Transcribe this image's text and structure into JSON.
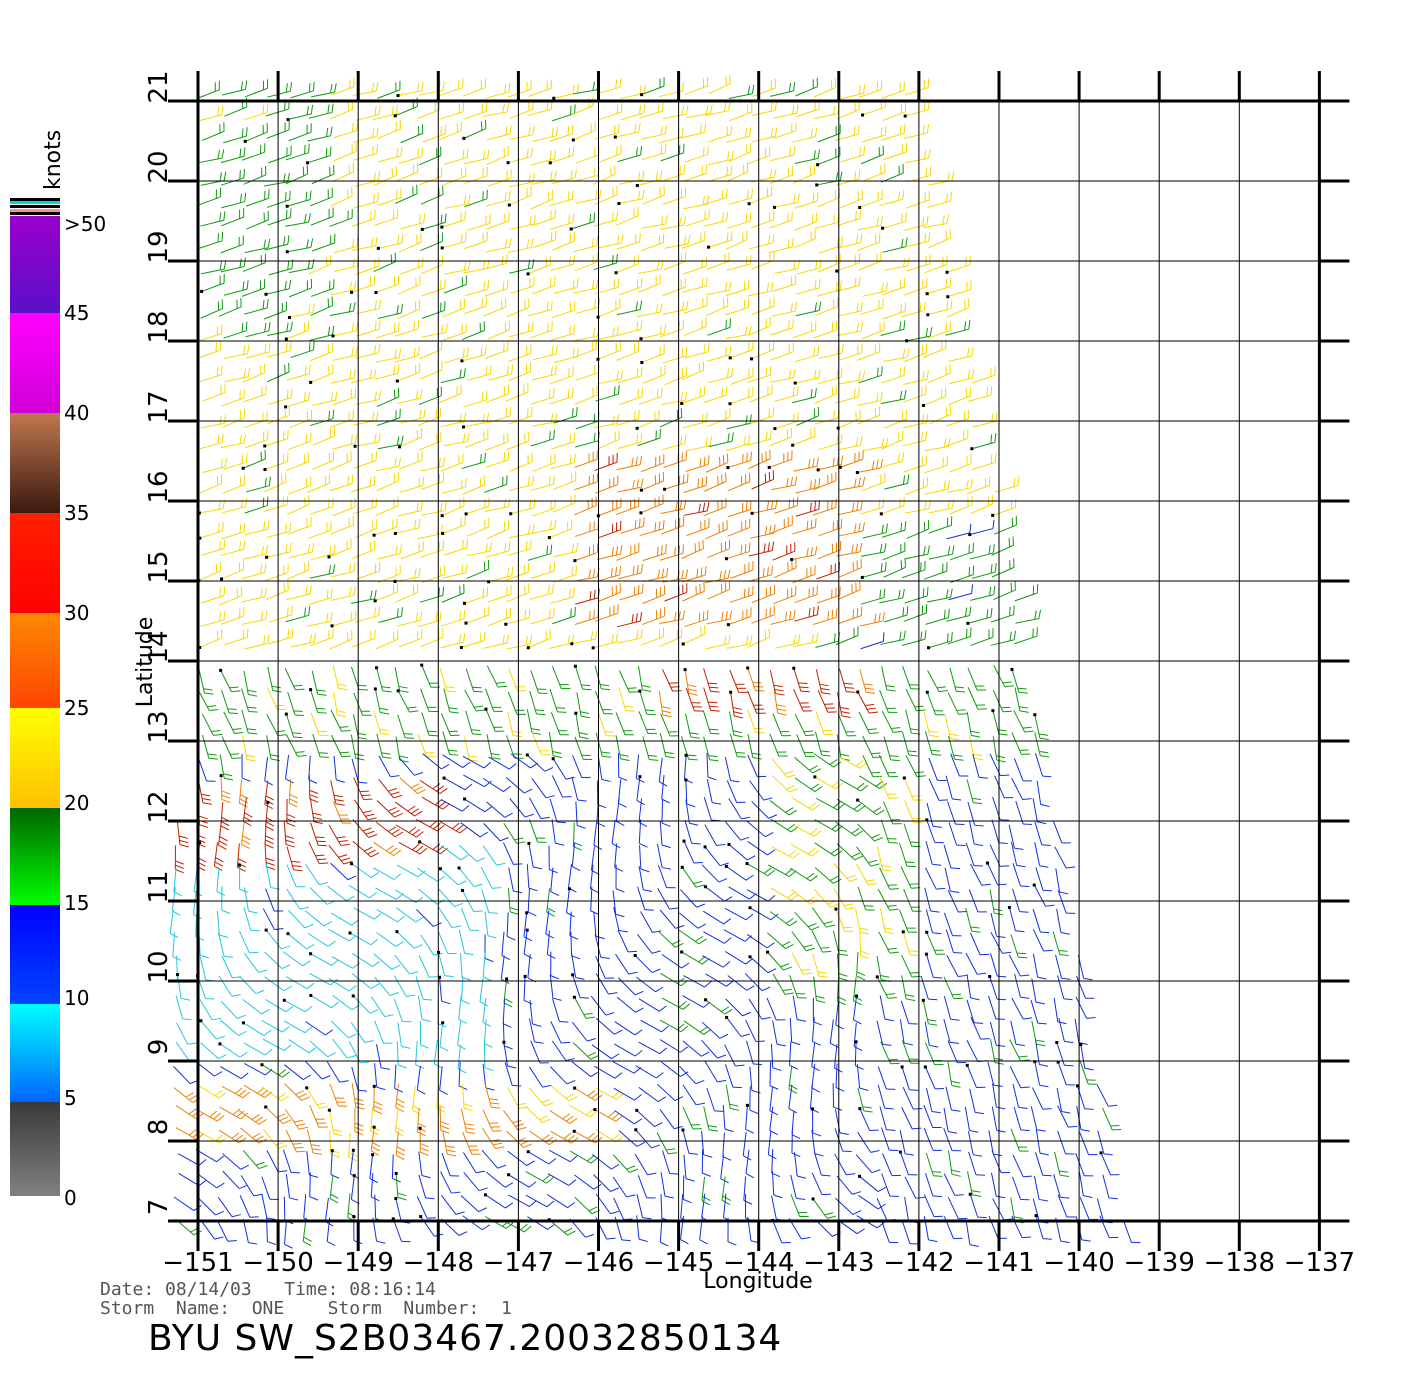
{
  "map": {
    "lon_labels": [
      "−151",
      "−150",
      "−149",
      "−148",
      "−147",
      "−146",
      "−145",
      "−144",
      "−143",
      "−142",
      "−141",
      "−140",
      "−139",
      "−138",
      "−137"
    ],
    "lat_labels": [
      "7",
      "8",
      "9",
      "10",
      "11",
      "12",
      "13",
      "14",
      "15",
      "16",
      "17",
      "18",
      "19",
      "20",
      "21"
    ],
    "xlabel": "Longitude",
    "ylabel": "Latitude",
    "lon_range": [
      -151,
      -137
    ],
    "lat_range": [
      7,
      21
    ],
    "grid": true
  },
  "colorbar": {
    "unit_label": "knots",
    "labels": [
      ">50",
      "45",
      "40",
      "35",
      "30",
      "25",
      "20",
      "15",
      "10",
      "5",
      "0"
    ],
    "colors": {
      "calm": "#808080",
      "light": "#00e5ff",
      "moderate": "#0000ff",
      "fresh": "#008800",
      "strong": "#ffe600",
      "gale": "#ff8800",
      "storm": "#e00000",
      "severe": "#6b3a1e",
      "violent": "#ff00ff",
      "extreme": "#6a00c8"
    }
  },
  "footer": {
    "date_line": "Date: 08/14/03   Time: 08:16:14",
    "storm_line": "Storm  Name:  ONE    Storm  Number:  1",
    "product": "BYU  SW_S2B03467.20032850134"
  }
}
